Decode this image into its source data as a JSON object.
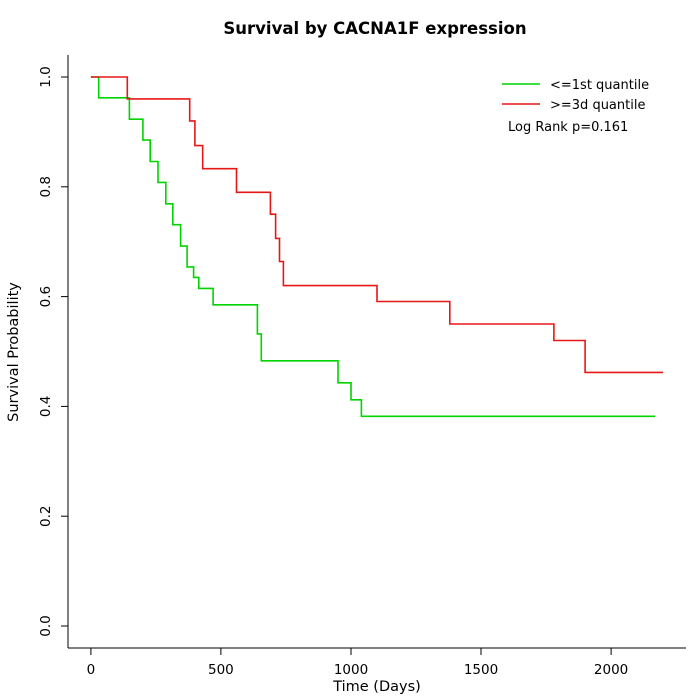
{
  "figure": {
    "title": "Survival by CACNA1F expression"
  },
  "chart_data": {
    "type": "line",
    "subtype": "kaplan-meier-step-survival",
    "title": "Survival by CACNA1F expression",
    "xlabel": "Time (Days)",
    "ylabel": "Survival Probability",
    "xlim": [
      0,
      2200
    ],
    "ylim": [
      0,
      1
    ],
    "grid": false,
    "legend_position": "top-right",
    "x_ticks": {
      "values": [
        0,
        500,
        1000,
        1500,
        2000
      ],
      "labels": [
        "0",
        "500",
        "1000",
        "1500",
        "2000"
      ]
    },
    "y_ticks": {
      "values": [
        0,
        0.2,
        0.4,
        0.6,
        0.8,
        1.0
      ],
      "labels": [
        "0.0",
        "0.2",
        "0.4",
        "0.6",
        "0.8",
        "1.0"
      ]
    },
    "annotations": [
      "Log Rank p=0.161"
    ],
    "series": [
      {
        "name": "<=1st quantile",
        "color": "#00d400",
        "points": [
          [
            0,
            1.0
          ],
          [
            30,
            0.962
          ],
          [
            148,
            0.923
          ],
          [
            200,
            0.885
          ],
          [
            228,
            0.846
          ],
          [
            258,
            0.808
          ],
          [
            288,
            0.769
          ],
          [
            315,
            0.731
          ],
          [
            345,
            0.692
          ],
          [
            370,
            0.654
          ],
          [
            395,
            0.635
          ],
          [
            415,
            0.615
          ],
          [
            470,
            0.585
          ],
          [
            640,
            0.532
          ],
          [
            655,
            0.483
          ],
          [
            950,
            0.443
          ],
          [
            1000,
            0.412
          ],
          [
            1040,
            0.382
          ],
          [
            2170,
            0.382
          ]
        ]
      },
      {
        "name": ">=3d quantile",
        "color": "#e81717",
        "points": [
          [
            0,
            1.0
          ],
          [
            140,
            0.96
          ],
          [
            380,
            0.92
          ],
          [
            400,
            0.875
          ],
          [
            430,
            0.833
          ],
          [
            560,
            0.79
          ],
          [
            690,
            0.75
          ],
          [
            710,
            0.706
          ],
          [
            725,
            0.664
          ],
          [
            740,
            0.62
          ],
          [
            1100,
            0.591
          ],
          [
            1380,
            0.55
          ],
          [
            1780,
            0.52
          ],
          [
            1900,
            0.462
          ],
          [
            2200,
            0.462
          ]
        ]
      }
    ]
  }
}
